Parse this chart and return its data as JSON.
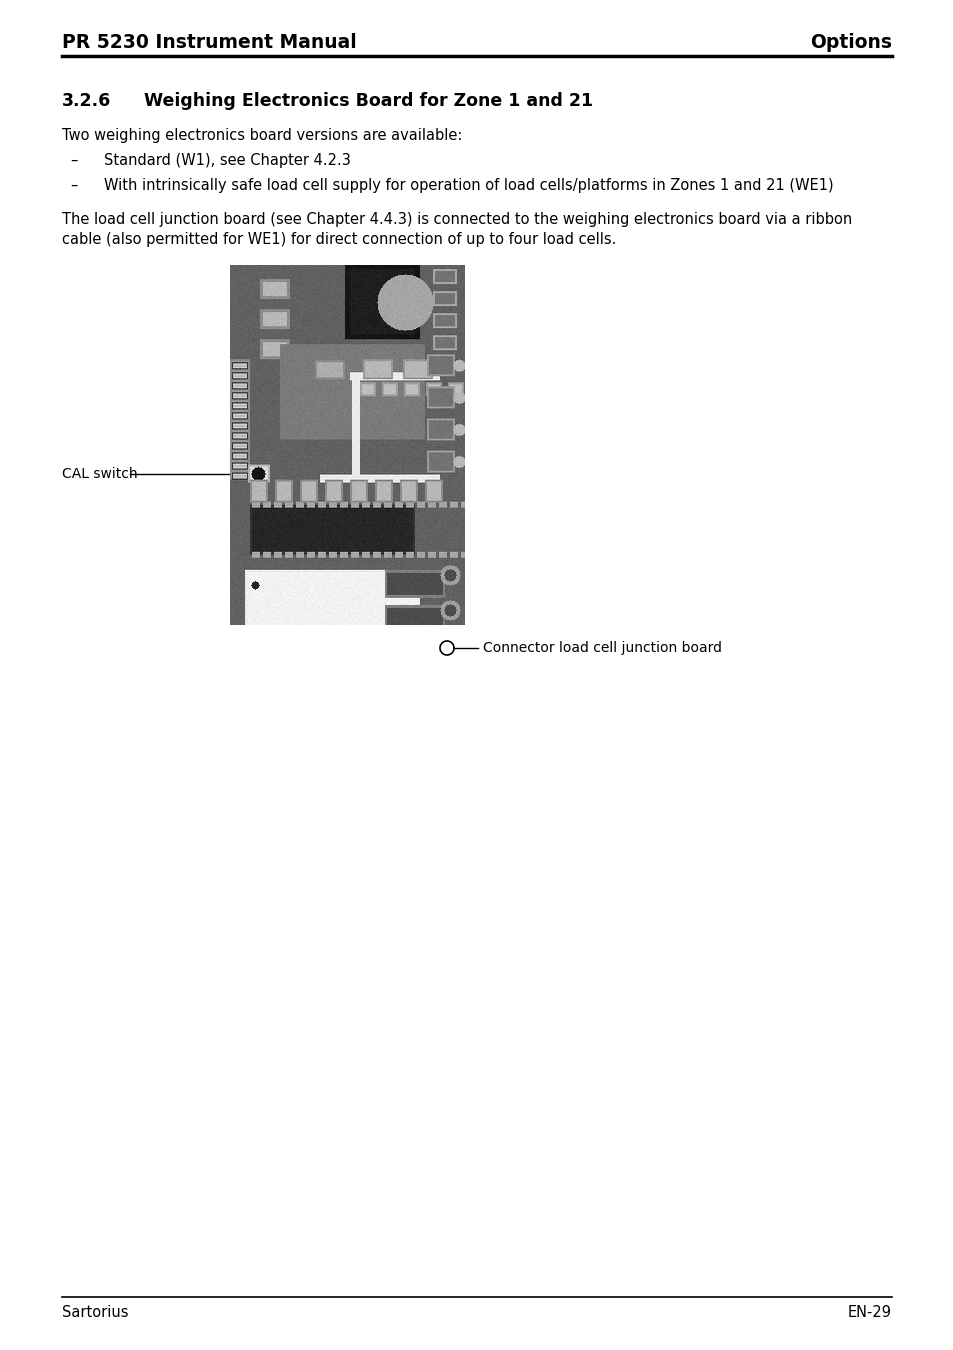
{
  "page_title_left": "PR 5230 Instrument Manual",
  "page_title_right": "Options",
  "footer_left": "Sartorius",
  "footer_right": "EN-29",
  "section_number": "3.2.6",
  "section_title": "Weighing Electronics Board for Zone 1 and 21",
  "body_text1": "Two weighing electronics board versions are available:",
  "bullet1": "Standard (W1), see Chapter 4.2.3",
  "bullet2": "With intrinsically safe load cell supply for operation of load cells/platforms in Zones 1 and 21 (WE1)",
  "body_text2_line1": "The load cell junction board (see Chapter 4.4.3) is connected to the weighing electronics board via a ribbon",
  "body_text2_line2": "cable (also permitted for WE1) for direct connection of up to four load cells.",
  "label_cal": "CAL switch",
  "label_connector": "Connector load cell junction board",
  "bg_color": "#ffffff",
  "text_color": "#000000",
  "header_line_color": "#000000",
  "footer_line_color": "#000000"
}
